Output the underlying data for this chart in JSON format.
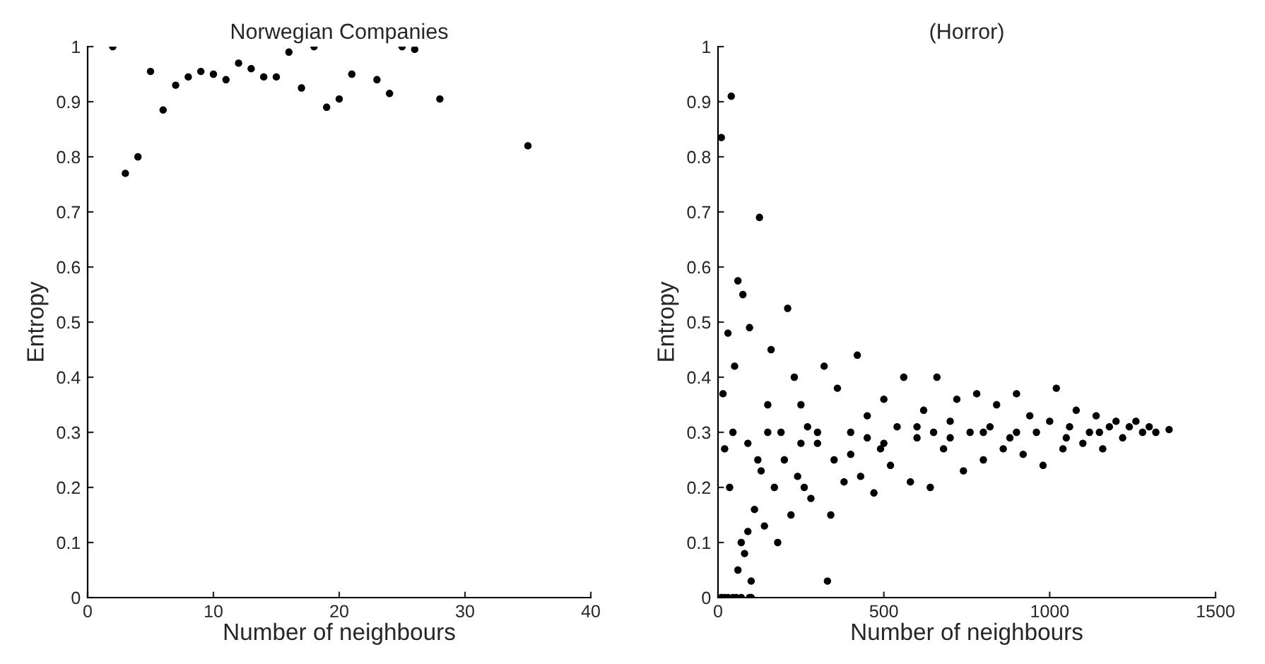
{
  "chart_data": [
    {
      "type": "scatter",
      "title": "Norwegian Companies",
      "xlabel": "Number of neighbours",
      "ylabel": "Entropy",
      "marker": "circle",
      "grid": false,
      "legend": false,
      "series": [
        {
          "color": "#000000",
          "x": [
            2,
            3,
            4,
            5,
            6,
            7,
            8,
            9,
            10,
            11,
            12,
            13,
            14,
            15,
            16,
            17,
            18,
            19,
            20,
            21,
            23,
            24,
            25,
            26,
            28,
            35
          ],
          "values": [
            1.0,
            0.77,
            0.8,
            0.955,
            0.885,
            0.93,
            0.945,
            0.955,
            0.95,
            0.94,
            0.97,
            0.96,
            0.945,
            0.945,
            0.99,
            0.925,
            1.0,
            0.89,
            0.905,
            0.95,
            0.94,
            0.915,
            1.0,
            0.995,
            0.905,
            0.82
          ]
        }
      ],
      "xlim": [
        0,
        40
      ],
      "xticks": [
        0,
        10,
        20,
        30,
        40
      ],
      "ylim": [
        0,
        1
      ],
      "yticks": [
        0,
        0.1,
        0.2,
        0.3,
        0.4,
        0.5,
        0.6,
        0.7,
        0.8,
        0.9,
        1
      ]
    },
    {
      "type": "scatter",
      "title": "(Horror)",
      "xlabel": "Number of neighbours",
      "ylabel": "Entropy",
      "marker": "circle",
      "grid": false,
      "legend": false,
      "series": [
        {
          "color": "#000000",
          "x": [
            10,
            20,
            30,
            45,
            55,
            70,
            95,
            100,
            10,
            40,
            125,
            60,
            75,
            95,
            210,
            30,
            50,
            20,
            15,
            35,
            45,
            60,
            70,
            80,
            90,
            100,
            110,
            130,
            140,
            150,
            160,
            170,
            180,
            190,
            200,
            220,
            230,
            240,
            250,
            260,
            270,
            280,
            300,
            320,
            330,
            340,
            350,
            360,
            380,
            400,
            420,
            430,
            450,
            470,
            490,
            500,
            520,
            540,
            560,
            580,
            600,
            620,
            640,
            660,
            680,
            700,
            720,
            740,
            760,
            780,
            800,
            820,
            840,
            860,
            880,
            900,
            920,
            940,
            960,
            980,
            1000,
            1020,
            1040,
            1060,
            1080,
            1100,
            1120,
            1140,
            1160,
            1180,
            1200,
            1220,
            1240,
            1260,
            1280,
            1300,
            1320,
            1360,
            300,
            500,
            700,
            900,
            600,
            800,
            400,
            1050,
            1150,
            250,
            150,
            120,
            90,
            450,
            650
          ],
          "values": [
            0,
            0,
            0,
            0,
            0,
            0,
            0,
            0,
            0.835,
            0.91,
            0.69,
            0.575,
            0.55,
            0.49,
            0.525,
            0.48,
            0.42,
            0.27,
            0.37,
            0.2,
            0.3,
            0.05,
            0.1,
            0.08,
            0.12,
            0.03,
            0.16,
            0.23,
            0.13,
            0.35,
            0.45,
            0.2,
            0.1,
            0.3,
            0.25,
            0.15,
            0.4,
            0.22,
            0.35,
            0.2,
            0.31,
            0.18,
            0.28,
            0.42,
            0.03,
            0.15,
            0.25,
            0.38,
            0.21,
            0.3,
            0.44,
            0.22,
            0.33,
            0.19,
            0.27,
            0.36,
            0.24,
            0.31,
            0.4,
            0.21,
            0.29,
            0.34,
            0.2,
            0.4,
            0.27,
            0.32,
            0.36,
            0.23,
            0.3,
            0.37,
            0.25,
            0.31,
            0.35,
            0.27,
            0.29,
            0.37,
            0.26,
            0.33,
            0.3,
            0.24,
            0.32,
            0.38,
            0.27,
            0.31,
            0.34,
            0.28,
            0.3,
            0.33,
            0.27,
            0.31,
            0.32,
            0.29,
            0.31,
            0.32,
            0.3,
            0.31,
            0.3,
            0.305,
            0.3,
            0.28,
            0.29,
            0.3,
            0.31,
            0.3,
            0.26,
            0.29,
            0.3,
            0.28,
            0.3,
            0.25,
            0.28,
            0.29,
            0.3
          ]
        }
      ],
      "xlim": [
        0,
        1500
      ],
      "xticks": [
        0,
        500,
        1000,
        1500
      ],
      "ylim": [
        0,
        1
      ],
      "yticks": [
        0,
        0.1,
        0.2,
        0.3,
        0.4,
        0.5,
        0.6,
        0.7,
        0.8,
        0.9,
        1
      ]
    }
  ]
}
